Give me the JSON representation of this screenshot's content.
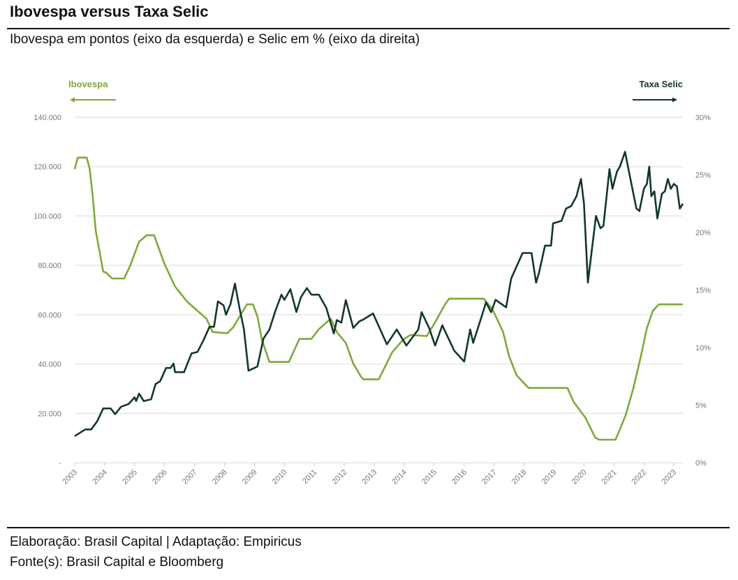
{
  "header": {
    "title": "Ibovespa versus Taxa Selic",
    "subtitle": "Ibovespa em pontos (eixo da esquerda) e Selic em % (eixo da direita)"
  },
  "footer": {
    "credit": "Elaboração: Brasil Capital | Adaptação: Empiricus",
    "source": "Fonte(s): Brasil Capital e Bloomberg"
  },
  "chart_data": {
    "type": "line",
    "title": "Ibovespa versus Taxa Selic",
    "legend": [
      {
        "label": "Ibovespa",
        "arrow": "left",
        "color": "#7fa83a",
        "placement": "top-left"
      },
      {
        "label": "Taxa Selic",
        "arrow": "right",
        "color": "#12362c",
        "placement": "top-right"
      }
    ],
    "x_ticks": [
      "2003",
      "2004",
      "2005",
      "2006",
      "2007",
      "2008",
      "2009",
      "2010",
      "2011",
      "2012",
      "2013",
      "2014",
      "2015",
      "2016",
      "2017",
      "2018",
      "2019",
      "2020",
      "2021",
      "2022",
      "2023"
    ],
    "xlim": [
      2003,
      2023.3
    ],
    "y_left": {
      "ticks": [
        "-",
        "20.000",
        "40.000",
        "60.000",
        "80.000",
        "100.000",
        "120.000",
        "140.000"
      ],
      "lim": [
        0,
        140000
      ]
    },
    "y_right": {
      "ticks": [
        "0%",
        "5%",
        "10%",
        "15%",
        "20%",
        "25%",
        "30%"
      ],
      "lim": [
        0,
        30
      ]
    },
    "grid": true,
    "series": [
      {
        "key": "ibovespa",
        "axis": "left",
        "color": "#12362c",
        "points": [
          [
            2003.0,
            10800
          ],
          [
            2003.35,
            13500
          ],
          [
            2003.55,
            13500
          ],
          [
            2003.75,
            16800
          ],
          [
            2003.95,
            22000
          ],
          [
            2004.2,
            22000
          ],
          [
            2004.35,
            19700
          ],
          [
            2004.55,
            22700
          ],
          [
            2004.8,
            23800
          ],
          [
            2005.0,
            26500
          ],
          [
            2005.05,
            25000
          ],
          [
            2005.15,
            28000
          ],
          [
            2005.3,
            25000
          ],
          [
            2005.55,
            25700
          ],
          [
            2005.7,
            31900
          ],
          [
            2005.85,
            33000
          ],
          [
            2006.05,
            38400
          ],
          [
            2006.2,
            38400
          ],
          [
            2006.3,
            40200
          ],
          [
            2006.35,
            36700
          ],
          [
            2006.65,
            36700
          ],
          [
            2006.9,
            44300
          ],
          [
            2007.1,
            44900
          ],
          [
            2007.3,
            49700
          ],
          [
            2007.5,
            55100
          ],
          [
            2007.65,
            55100
          ],
          [
            2007.78,
            65400
          ],
          [
            2007.97,
            63800
          ],
          [
            2008.05,
            60000
          ],
          [
            2008.2,
            64300
          ],
          [
            2008.35,
            72600
          ],
          [
            2008.5,
            62700
          ],
          [
            2008.65,
            54000
          ],
          [
            2008.8,
            37300
          ],
          [
            2009.0,
            38400
          ],
          [
            2009.1,
            39000
          ],
          [
            2009.3,
            50300
          ],
          [
            2009.5,
            54000
          ],
          [
            2009.7,
            61600
          ],
          [
            2009.9,
            68100
          ],
          [
            2010.0,
            66000
          ],
          [
            2010.2,
            70300
          ],
          [
            2010.4,
            61100
          ],
          [
            2010.55,
            67000
          ],
          [
            2010.75,
            70800
          ],
          [
            2010.9,
            68100
          ],
          [
            2011.15,
            68100
          ],
          [
            2011.4,
            62700
          ],
          [
            2011.65,
            52400
          ],
          [
            2011.75,
            57800
          ],
          [
            2011.9,
            56800
          ],
          [
            2012.05,
            65900
          ],
          [
            2012.3,
            54600
          ],
          [
            2012.5,
            57300
          ],
          [
            2012.63,
            58000
          ],
          [
            2012.96,
            60500
          ],
          [
            2013.42,
            48000
          ],
          [
            2013.75,
            54000
          ],
          [
            2014.07,
            47500
          ],
          [
            2014.47,
            54000
          ],
          [
            2014.58,
            61000
          ],
          [
            2014.83,
            54600
          ],
          [
            2015.03,
            47500
          ],
          [
            2015.27,
            55700
          ],
          [
            2015.67,
            45400
          ],
          [
            2016.0,
            41000
          ],
          [
            2016.2,
            54000
          ],
          [
            2016.3,
            48600
          ],
          [
            2016.55,
            58000
          ],
          [
            2016.73,
            65000
          ],
          [
            2016.9,
            61000
          ],
          [
            2017.05,
            66000
          ],
          [
            2017.4,
            63000
          ],
          [
            2017.57,
            74600
          ],
          [
            2017.95,
            85000
          ],
          [
            2018.25,
            85000
          ],
          [
            2018.4,
            73000
          ],
          [
            2018.5,
            77000
          ],
          [
            2018.7,
            88000
          ],
          [
            2018.9,
            88000
          ],
          [
            2018.97,
            97000
          ],
          [
            2019.25,
            98000
          ],
          [
            2019.4,
            103000
          ],
          [
            2019.57,
            104000
          ],
          [
            2019.75,
            108000
          ],
          [
            2019.9,
            115000
          ],
          [
            2020.0,
            105000
          ],
          [
            2020.13,
            73000
          ],
          [
            2020.4,
            100000
          ],
          [
            2020.55,
            95000
          ],
          [
            2020.65,
            96000
          ],
          [
            2020.85,
            119000
          ],
          [
            2020.95,
            111000
          ],
          [
            2021.1,
            118000
          ],
          [
            2021.2,
            120000
          ],
          [
            2021.37,
            126000
          ],
          [
            2021.55,
            115000
          ],
          [
            2021.75,
            103000
          ],
          [
            2021.85,
            102000
          ],
          [
            2022.0,
            111000
          ],
          [
            2022.1,
            113000
          ],
          [
            2022.18,
            120000
          ],
          [
            2022.25,
            108000
          ],
          [
            2022.35,
            110000
          ],
          [
            2022.45,
            99000
          ],
          [
            2022.6,
            109000
          ],
          [
            2022.7,
            110000
          ],
          [
            2022.8,
            115000
          ],
          [
            2022.9,
            111000
          ],
          [
            2023.0,
            113000
          ],
          [
            2023.1,
            112000
          ],
          [
            2023.2,
            103000
          ],
          [
            2023.3,
            105000
          ]
        ]
      },
      {
        "key": "selic",
        "axis": "right",
        "color": "#7fa83a",
        "points": [
          [
            2003.0,
            25.5
          ],
          [
            2003.1,
            26.5
          ],
          [
            2003.4,
            26.5
          ],
          [
            2003.5,
            25.5
          ],
          [
            2003.6,
            23.2
          ],
          [
            2003.7,
            20.2
          ],
          [
            2003.95,
            16.6
          ],
          [
            2004.05,
            16.5
          ],
          [
            2004.25,
            16.0
          ],
          [
            2004.65,
            16.0
          ],
          [
            2004.85,
            17.1
          ],
          [
            2005.15,
            19.2
          ],
          [
            2005.4,
            19.75
          ],
          [
            2005.65,
            19.75
          ],
          [
            2006.0,
            17.25
          ],
          [
            2006.35,
            15.3
          ],
          [
            2006.75,
            14.0
          ],
          [
            2007.05,
            13.3
          ],
          [
            2007.4,
            12.5
          ],
          [
            2007.6,
            11.35
          ],
          [
            2008.1,
            11.25
          ],
          [
            2008.3,
            11.8
          ],
          [
            2008.55,
            12.9
          ],
          [
            2008.75,
            13.75
          ],
          [
            2008.95,
            13.75
          ],
          [
            2009.1,
            12.7
          ],
          [
            2009.25,
            10.65
          ],
          [
            2009.5,
            8.75
          ],
          [
            2010.15,
            8.75
          ],
          [
            2010.3,
            9.6
          ],
          [
            2010.5,
            10.75
          ],
          [
            2010.9,
            10.75
          ],
          [
            2011.15,
            11.6
          ],
          [
            2011.5,
            12.4
          ],
          [
            2011.55,
            12.5
          ],
          [
            2011.75,
            11.35
          ],
          [
            2012.05,
            10.4
          ],
          [
            2012.3,
            8.6
          ],
          [
            2012.55,
            7.5
          ],
          [
            2012.63,
            7.25
          ],
          [
            2013.15,
            7.25
          ],
          [
            2013.6,
            9.6
          ],
          [
            2013.95,
            10.65
          ],
          [
            2014.2,
            11.1
          ],
          [
            2014.75,
            11.0
          ],
          [
            2015.03,
            12.2
          ],
          [
            2015.35,
            13.7
          ],
          [
            2015.5,
            14.25
          ],
          [
            2016.65,
            14.25
          ],
          [
            2016.95,
            13.3
          ],
          [
            2017.3,
            11.35
          ],
          [
            2017.5,
            9.25
          ],
          [
            2017.75,
            7.6
          ],
          [
            2018.15,
            6.5
          ],
          [
            2019.45,
            6.5
          ],
          [
            2019.65,
            5.3
          ],
          [
            2020.05,
            3.9
          ],
          [
            2020.37,
            2.2
          ],
          [
            2020.5,
            2.0
          ],
          [
            2021.05,
            2.0
          ],
          [
            2021.2,
            2.9
          ],
          [
            2021.4,
            4.2
          ],
          [
            2021.65,
            6.5
          ],
          [
            2021.9,
            9.25
          ],
          [
            2022.1,
            11.7
          ],
          [
            2022.3,
            13.2
          ],
          [
            2022.5,
            13.75
          ],
          [
            2023.3,
            13.75
          ]
        ]
      }
    ]
  }
}
